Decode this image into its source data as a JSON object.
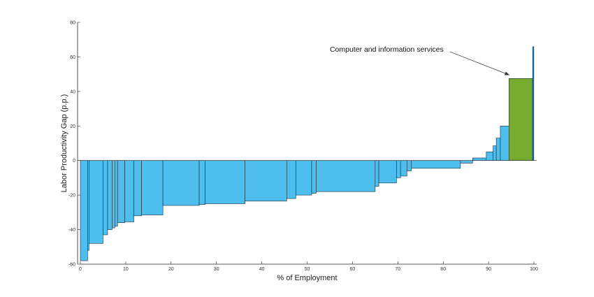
{
  "chart_data": {
    "type": "bar",
    "subtype": "variable-width",
    "xlabel": "% of Employment",
    "ylabel": "Labor Productivity Gap (p.p.)",
    "xlim": [
      0,
      100
    ],
    "ylim": [
      -60,
      80
    ],
    "xticks": [
      0,
      10,
      20,
      30,
      40,
      50,
      60,
      70,
      80,
      90,
      100
    ],
    "yticks": [
      -60,
      -40,
      -20,
      0,
      20,
      40,
      60,
      80
    ],
    "grid": false,
    "colors": {
      "bars": "#4dbeee",
      "highlight": "#77ac30",
      "edge": "#1f2a33",
      "axis": "#262626",
      "thin_bar": "#0072bd"
    },
    "bars": [
      {
        "x0": 0.0,
        "x1": 1.6,
        "value": -58
      },
      {
        "x0": 1.6,
        "x1": 1.9,
        "value": -52
      },
      {
        "x0": 1.9,
        "x1": 5.0,
        "value": -48
      },
      {
        "x0": 5.0,
        "x1": 6.0,
        "value": -43
      },
      {
        "x0": 6.0,
        "x1": 7.0,
        "value": -40
      },
      {
        "x0": 7.0,
        "x1": 7.6,
        "value": -39
      },
      {
        "x0": 7.6,
        "x1": 8.2,
        "value": -38
      },
      {
        "x0": 8.2,
        "x1": 9.8,
        "value": -36
      },
      {
        "x0": 9.8,
        "x1": 11.8,
        "value": -35.5
      },
      {
        "x0": 11.8,
        "x1": 13.5,
        "value": -32
      },
      {
        "x0": 13.5,
        "x1": 18.2,
        "value": -31.5
      },
      {
        "x0": 18.2,
        "x1": 26.2,
        "value": -26
      },
      {
        "x0": 26.2,
        "x1": 27.5,
        "value": -25.5
      },
      {
        "x0": 27.5,
        "x1": 36.3,
        "value": -25
      },
      {
        "x0": 36.3,
        "x1": 45.5,
        "value": -23.5
      },
      {
        "x0": 45.5,
        "x1": 47.5,
        "value": -22
      },
      {
        "x0": 47.5,
        "x1": 51.0,
        "value": -20
      },
      {
        "x0": 51.0,
        "x1": 52.0,
        "value": -19
      },
      {
        "x0": 52.0,
        "x1": 65.0,
        "value": -18
      },
      {
        "x0": 65.0,
        "x1": 65.8,
        "value": -15
      },
      {
        "x0": 65.8,
        "x1": 69.7,
        "value": -13
      },
      {
        "x0": 69.7,
        "x1": 70.6,
        "value": -10
      },
      {
        "x0": 70.6,
        "x1": 72.0,
        "value": -9
      },
      {
        "x0": 72.0,
        "x1": 73.0,
        "value": -6
      },
      {
        "x0": 73.0,
        "x1": 83.8,
        "value": -4.5
      },
      {
        "x0": 83.8,
        "x1": 86.5,
        "value": -1.5
      },
      {
        "x0": 86.5,
        "x1": 89.5,
        "value": 1.5
      },
      {
        "x0": 89.5,
        "x1": 91.0,
        "value": 5
      },
      {
        "x0": 91.0,
        "x1": 91.7,
        "value": 8.5
      },
      {
        "x0": 91.7,
        "x1": 92.6,
        "value": 13
      },
      {
        "x0": 92.6,
        "x1": 94.5,
        "value": 20
      },
      {
        "x0": 94.5,
        "x1": 99.7,
        "value": 47.5,
        "highlight": true
      },
      {
        "x0": 99.7,
        "x1": 100.0,
        "value": 66,
        "thin": true
      }
    ],
    "annotation": {
      "text": "Computer and information services",
      "text_at": [
        55,
        63
      ],
      "arrow_from": [
        81.5,
        63
      ],
      "arrow_to": [
        94.6,
        49.5
      ]
    }
  }
}
